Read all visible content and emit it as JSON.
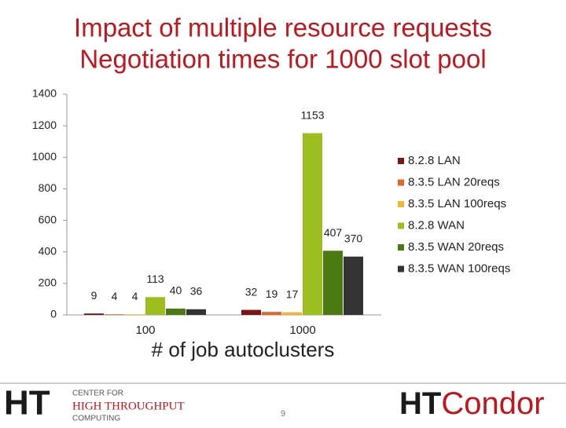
{
  "chart_data": {
    "type": "bar",
    "title": [
      "Impact of multiple resource requests",
      "Negotiation times for 1000 slot pool"
    ],
    "x_label": "# of job autoclusters",
    "categories": [
      "100",
      "1000"
    ],
    "series": [
      {
        "name": "8.2.8 LAN",
        "color": "#7b1414",
        "values": [
          9,
          32
        ]
      },
      {
        "name": "8.3.5 LAN 20reqs",
        "color": "#e0662a",
        "values": [
          4,
          19
        ]
      },
      {
        "name": "8.3.5 LAN 100reqs",
        "color": "#f2b632",
        "values": [
          4,
          17
        ]
      },
      {
        "name": "8.2.8 WAN",
        "color": "#9cbf1f",
        "values": [
          113,
          1153
        ]
      },
      {
        "name": "8.3.5 WAN 20reqs",
        "color": "#4b7a12",
        "values": [
          40,
          407
        ]
      },
      {
        "name": "8.3.5 WAN 100reqs",
        "color": "#333333",
        "values": [
          36,
          370
        ]
      }
    ],
    "ylim": [
      0,
      1400
    ],
    "yticks": [
      0,
      200,
      400,
      600,
      800,
      1000,
      1200,
      1400
    ],
    "grid": false,
    "legend": "right"
  },
  "footer": {
    "left_logo": {
      "mark": "HT",
      "lines": [
        "CENTER FOR",
        "HIGH THROUGHPUT",
        "COMPUTING"
      ]
    },
    "right_logo": {
      "first": "HT",
      "second": "Condor"
    },
    "page_number": "9"
  }
}
